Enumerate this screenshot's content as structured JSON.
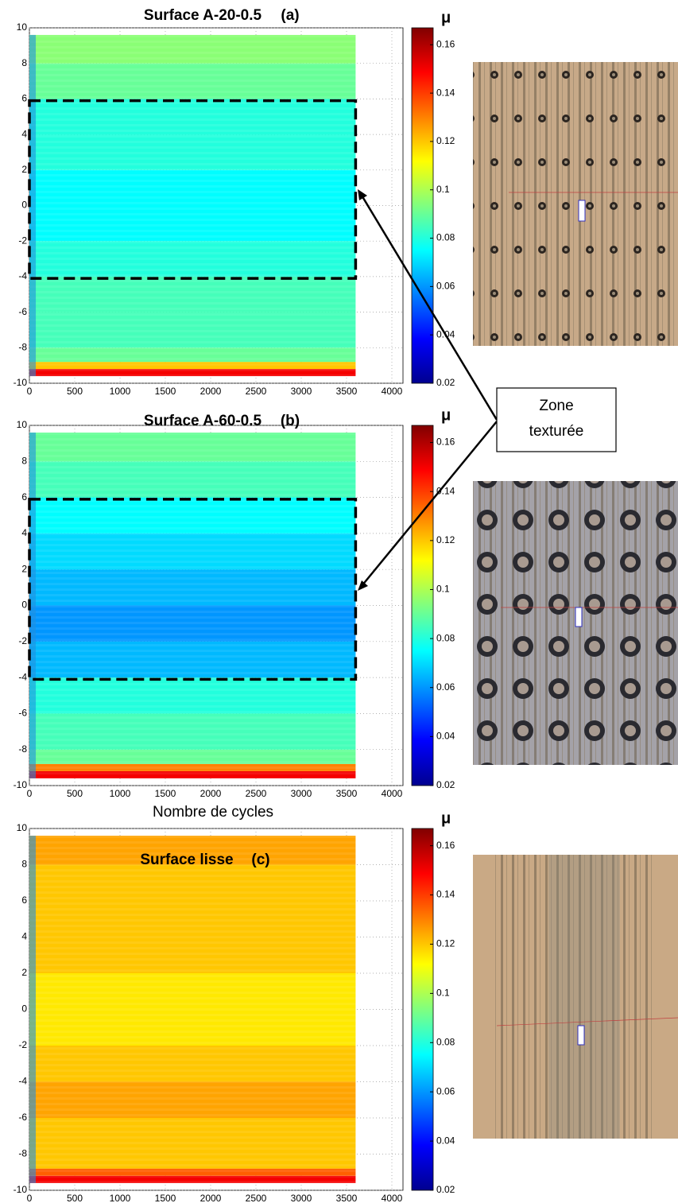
{
  "chart_data": [
    {
      "type": "heatmap",
      "title": "Surface A-20-0.5",
      "panel_label": "(a)",
      "xlim": [
        0,
        4000
      ],
      "xticks": [
        0,
        500,
        1000,
        1500,
        2000,
        2500,
        3000,
        3500,
        4000
      ],
      "ylim": [
        -10,
        10
      ],
      "yticks": [
        -10,
        -8,
        -6,
        -4,
        -2,
        0,
        2,
        4,
        6,
        8,
        10
      ],
      "x_extent": [
        0,
        3600
      ],
      "y_bins": [
        -9.6,
        -9.2,
        -8.8,
        -8,
        -6,
        -4,
        -2,
        0,
        2,
        4,
        6,
        8,
        9.6
      ],
      "values": [
        0.15,
        0.12,
        0.09,
        0.085,
        0.085,
        0.08,
        0.075,
        0.075,
        0.08,
        0.08,
        0.09,
        0.095
      ],
      "zone": {
        "xlim": [
          0,
          3600
        ],
        "ylim": [
          -4.1,
          5.9
        ]
      },
      "clim": [
        0.02,
        0.167
      ],
      "cticks": [
        0.02,
        0.04,
        0.06,
        0.08,
        0.1,
        0.12,
        0.14,
        0.16
      ],
      "colorbar_label": "μ"
    },
    {
      "type": "heatmap",
      "title": "Surface A-60-0.5",
      "panel_label": "(b)",
      "xlabel": "Nombre de cycles",
      "xlim": [
        0,
        4000
      ],
      "xticks": [
        0,
        500,
        1000,
        1500,
        2000,
        2500,
        3000,
        3500,
        4000
      ],
      "ylim": [
        -10,
        10
      ],
      "yticks": [
        -10,
        -8,
        -6,
        -4,
        -2,
        0,
        2,
        4,
        6,
        8,
        10
      ],
      "x_extent": [
        0,
        3600
      ],
      "y_bins": [
        -9.6,
        -9.2,
        -8.8,
        -8,
        -6,
        -4,
        -2,
        0,
        2,
        4,
        6,
        8,
        9.6
      ],
      "values": [
        0.15,
        0.13,
        0.09,
        0.085,
        0.08,
        0.065,
        0.06,
        0.065,
        0.07,
        0.075,
        0.085,
        0.09
      ],
      "zone": {
        "xlim": [
          0,
          3600
        ],
        "ylim": [
          -4.1,
          5.9
        ]
      },
      "clim": [
        0.02,
        0.167
      ],
      "cticks": [
        0.02,
        0.04,
        0.06,
        0.08,
        0.1,
        0.12,
        0.14,
        0.16
      ],
      "colorbar_label": "μ"
    },
    {
      "type": "heatmap",
      "title": "Surface lisse",
      "panel_label": "(c)",
      "xlim": [
        0,
        4000
      ],
      "xticks": [
        0,
        500,
        1000,
        1500,
        2000,
        2500,
        3000,
        3500,
        4000
      ],
      "ylim": [
        -10,
        10
      ],
      "yticks": [
        -10,
        -8,
        -6,
        -4,
        -2,
        0,
        2,
        4,
        6,
        8,
        10
      ],
      "x_extent": [
        0,
        3600
      ],
      "y_bins": [
        -9.6,
        -9.2,
        -8.8,
        -8,
        -6,
        -4,
        -2,
        0,
        2,
        4,
        6,
        8,
        9.6
      ],
      "values": [
        0.15,
        0.135,
        0.12,
        0.12,
        0.125,
        0.12,
        0.115,
        0.115,
        0.12,
        0.12,
        0.12,
        0.125
      ],
      "clim": [
        0.02,
        0.167
      ],
      "cticks": [
        0.02,
        0.04,
        0.06,
        0.08,
        0.1,
        0.12,
        0.14,
        0.16
      ],
      "colorbar_label": "μ"
    }
  ],
  "annotation": "Zone texturée"
}
